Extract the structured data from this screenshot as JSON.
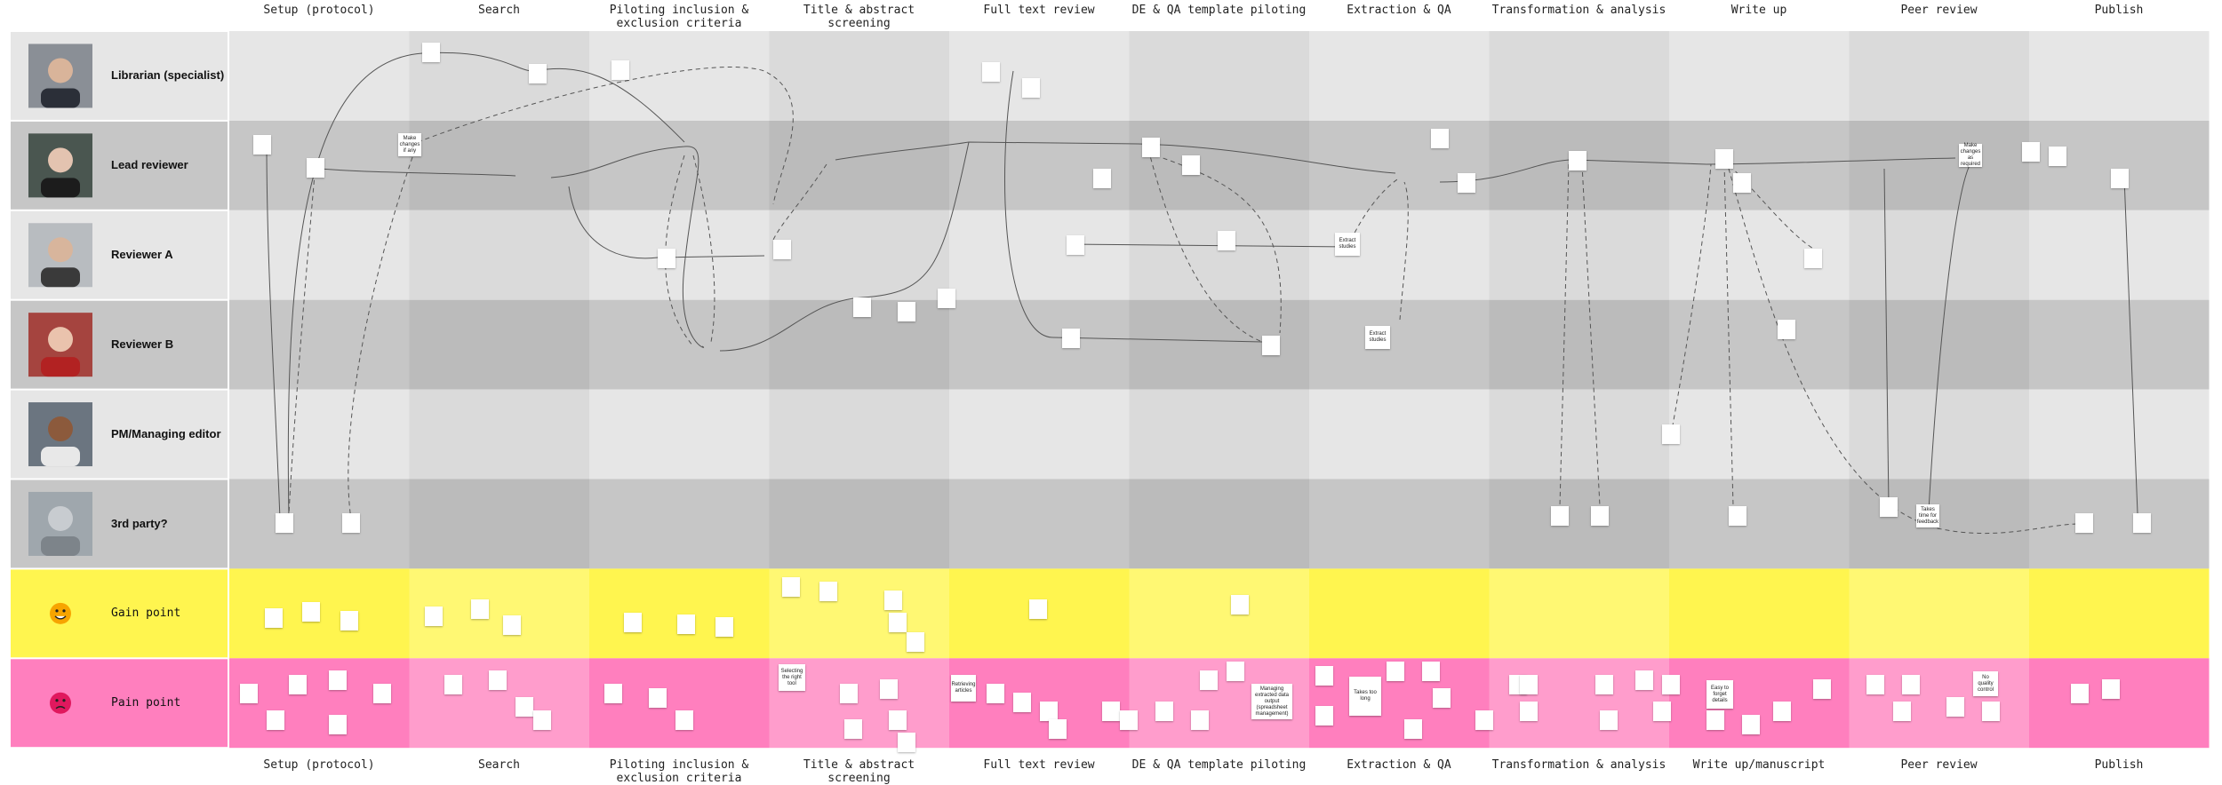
{
  "header": {
    "top_columns": [
      "Setup (protocol)",
      "Search",
      "Piloting inclusion & exclusion criteria",
      "Title & abstract screening",
      "Full text review",
      "DE & QA template piloting",
      "Extraction & QA",
      "Transformation & analysis",
      "Write up",
      "Peer review",
      "Publish"
    ],
    "bottom_columns": [
      "Setup (protocol)",
      "Search",
      "Piloting inclusion & exclusion criteria",
      "Title & abstract screening",
      "Full text review",
      "DE & QA template piloting",
      "Extraction & QA",
      "Transformation & analysis",
      "Write up/manuscript",
      "Peer review",
      "Publish"
    ]
  },
  "lanes": [
    {
      "label": "Librarian (specialist)"
    },
    {
      "label": "Lead reviewer"
    },
    {
      "label": "Reviewer A"
    },
    {
      "label": "Reviewer B"
    },
    {
      "label": "PM/Managing editor"
    },
    {
      "label": "3rd party?"
    },
    {
      "label": "Gain point"
    },
    {
      "label": "Pain point"
    }
  ],
  "notes": [
    "Make changes if any",
    "Extract studies",
    "Extract studies",
    "Make changes as required",
    "Takes time for feedback",
    "Selecting the right tool",
    "Retrieving articles",
    "Managing extracted data output (spreadsheet management)",
    "Takes too long",
    "Easy to forget details",
    "No quality control"
  ]
}
